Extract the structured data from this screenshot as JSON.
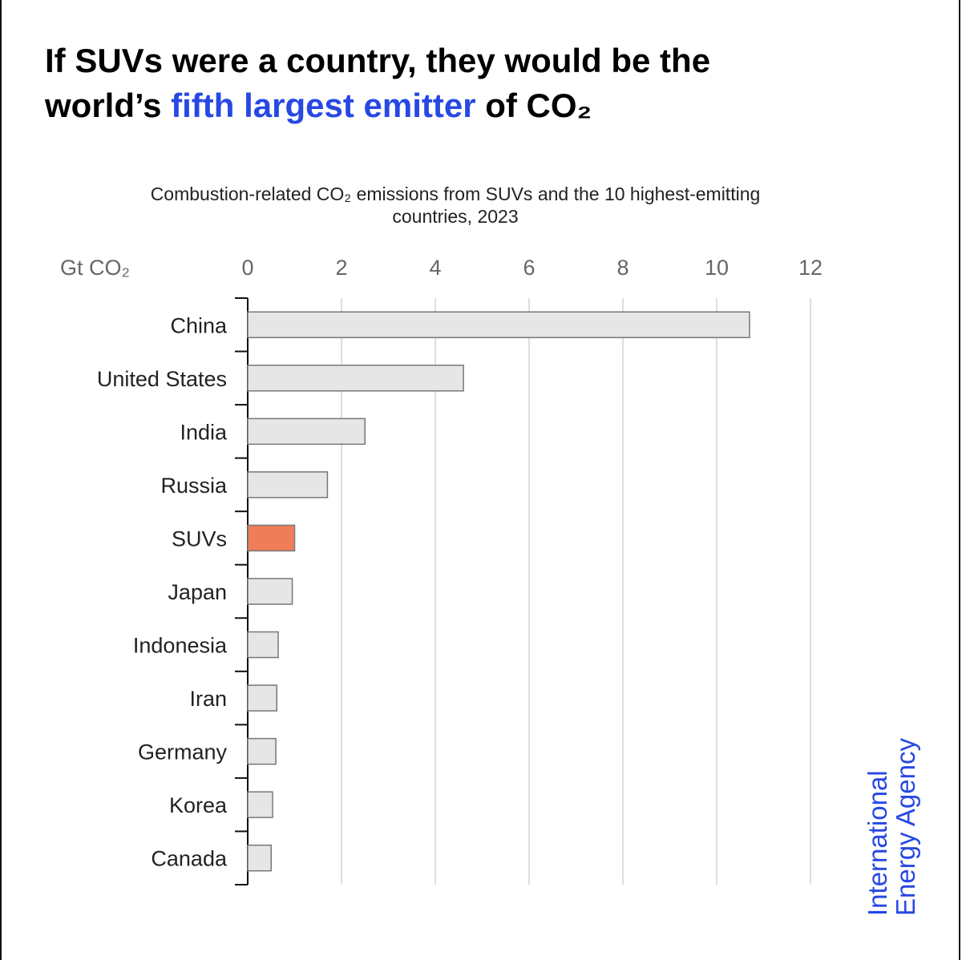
{
  "chart_data": {
    "type": "hbar",
    "title": [
      "If SUVs were a country, they would be the",
      "world’s ",
      "fifth largest emitter",
      " of CO₂"
    ],
    "title_highlight_color": "#2748e3",
    "subtitle": [
      "Combustion-related CO₂ emissions from SUVs and the 10 highest-emitting",
      "countries, 2023"
    ],
    "unit_label": "Gt CO₂",
    "categories": [
      "China",
      "United States",
      "India",
      "Russia",
      "SUVs",
      "Japan",
      "Indonesia",
      "Iran",
      "Germany",
      "Korea",
      "Canada"
    ],
    "values": [
      10.7,
      4.6,
      2.5,
      1.7,
      1.0,
      0.95,
      0.65,
      0.62,
      0.6,
      0.53,
      0.5
    ],
    "colors": [
      "#e6e6e6",
      "#e6e6e6",
      "#e6e6e6",
      "#e6e6e6",
      "#ef7d5a",
      "#e6e6e6",
      "#e6e6e6",
      "#e6e6e6",
      "#e6e6e6",
      "#e6e6e6",
      "#e6e6e6"
    ],
    "xlim": [
      0,
      12
    ],
    "xticks": [
      0,
      2,
      4,
      6,
      8,
      10,
      12
    ],
    "grid": true,
    "source": [
      "International",
      "Energy Agency"
    ],
    "source_color": "#2748e3"
  }
}
